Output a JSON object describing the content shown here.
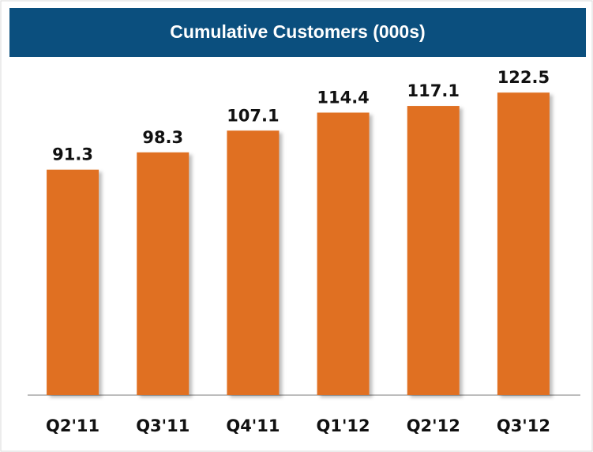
{
  "chart_data": {
    "type": "bar",
    "title": "Cumulative Customers (000s)",
    "categories": [
      "Q2'11",
      "Q3'11",
      "Q4'11",
      "Q1'12",
      "Q2'12",
      "Q3'12"
    ],
    "values": [
      91.3,
      98.3,
      107.1,
      114.4,
      117.1,
      122.5
    ],
    "color": "#e07020",
    "ylim": [
      0,
      136
    ]
  }
}
